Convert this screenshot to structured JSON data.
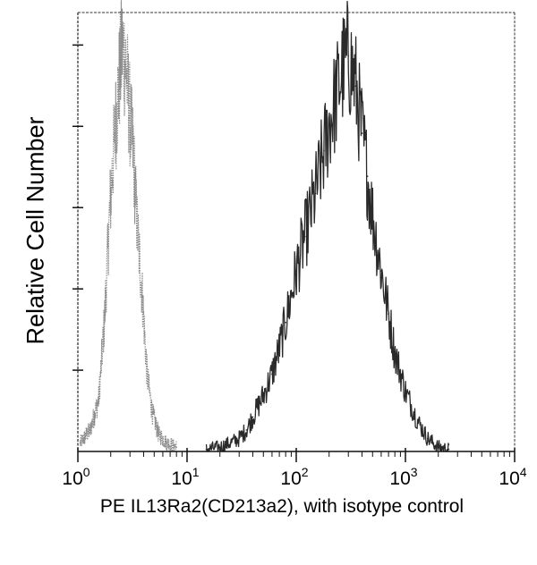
{
  "chart_data": {
    "type": "area",
    "xlabel": "PE IL13Ra2(CD213a2), with isotype control",
    "ylabel": "Relative Cell Number",
    "x_scale": "log",
    "xlim": [
      1,
      10000
    ],
    "ylim": [
      0,
      100
    ],
    "x_ticks": [
      {
        "value": 1,
        "base": "10",
        "exp": "0"
      },
      {
        "value": 10,
        "base": "10",
        "exp": "1"
      },
      {
        "value": 100,
        "base": "10",
        "exp": "2"
      },
      {
        "value": 1000,
        "base": "10",
        "exp": "3"
      },
      {
        "value": 10000,
        "base": "10",
        "exp": "4"
      }
    ],
    "grid": false,
    "series": [
      {
        "role": "isotype control",
        "color": "#8a8a8a",
        "x": [
          1.05,
          1.3,
          1.55,
          1.75,
          1.95,
          2.15,
          2.35,
          2.55,
          2.75,
          2.95,
          3.2,
          3.5,
          3.9,
          4.3,
          4.8,
          5.5,
          6.5,
          8
        ],
        "y": [
          2,
          5,
          12,
          30,
          55,
          72,
          84,
          94,
          90,
          80,
          70,
          52,
          36,
          18,
          9,
          4,
          2,
          1
        ]
      },
      {
        "role": "IL13Ra2(CD213a2)",
        "color": "#2a2a2a",
        "x": [
          15,
          20,
          25,
          30,
          35,
          40,
          50,
          60,
          70,
          80,
          100,
          120,
          150,
          180,
          200,
          230,
          260,
          300,
          350,
          400,
          450,
          500,
          600,
          700,
          800,
          1000,
          1300,
          1600,
          2000,
          2500
        ],
        "y": [
          0.5,
          1,
          2,
          3,
          5,
          8,
          13,
          18,
          24,
          30,
          42,
          50,
          60,
          70,
          76,
          82,
          88,
          92,
          85,
          74,
          64,
          55,
          42,
          32,
          23,
          14,
          7,
          3,
          1,
          0.5
        ]
      }
    ]
  }
}
